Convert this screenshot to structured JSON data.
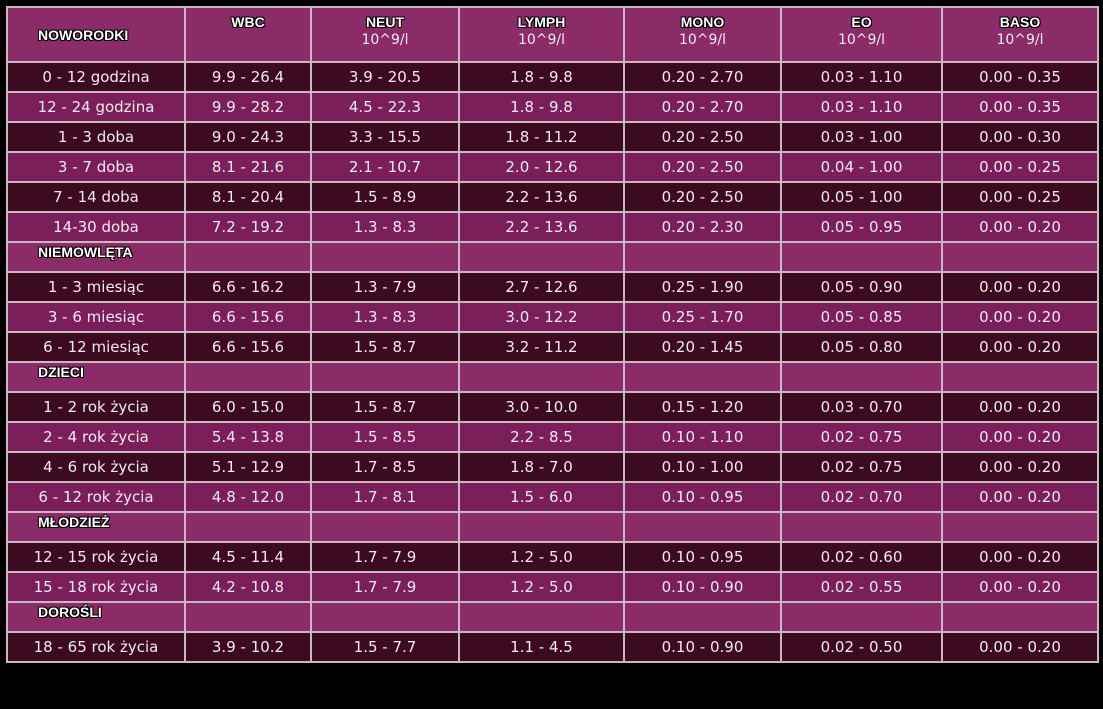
{
  "header": {
    "columns": [
      {
        "name": "WBC"
      },
      {
        "name": "NEUT",
        "unit": "10^9/l"
      },
      {
        "name": "LYMPH",
        "unit": "10^9/l"
      },
      {
        "name": "MONO",
        "unit": "10^9/l"
      },
      {
        "name": "EO",
        "unit": "10^9/l"
      },
      {
        "name": "BASO",
        "unit": "10^9/l"
      }
    ]
  },
  "sections": [
    {
      "title": "NOWORODKI",
      "rows": [
        [
          "0 - 12 godzina",
          "9.9 - 26.4",
          "3.9 - 20.5",
          "1.8 - 9.8",
          "0.20 - 2.70",
          "0.03 - 1.10",
          "0.00 - 0.35"
        ],
        [
          "12 - 24 godzina",
          "9.9 - 28.2",
          "4.5 - 22.3",
          "1.8 - 9.8",
          "0.20 - 2.70",
          "0.03 - 1.10",
          "0.00 - 0.35"
        ],
        [
          "1 - 3 doba",
          "9.0 - 24.3",
          "3.3 - 15.5",
          "1.8 - 11.2",
          "0.20 - 2.50",
          "0.03 - 1.00",
          "0.00 - 0.30"
        ],
        [
          "3 - 7 doba",
          "8.1 - 21.6",
          "2.1 - 10.7",
          "2.0 - 12.6",
          "0.20 - 2.50",
          "0.04 - 1.00",
          "0.00 - 0.25"
        ],
        [
          "7 - 14 doba",
          "8.1 - 20.4",
          "1.5 - 8.9",
          "2.2 - 13.6",
          "0.20 - 2.50",
          "0.05 - 1.00",
          "0.00 - 0.25"
        ],
        [
          "14-30 doba",
          "7.2 - 19.2",
          "1.3 - 8.3",
          "2.2 - 13.6",
          "0.20 - 2.30",
          "0.05 - 0.95",
          "0.00 - 0.20"
        ]
      ]
    },
    {
      "title": "NIEMOWLĘTA",
      "rows": [
        [
          "1 - 3 miesiąc",
          "6.6 - 16.2",
          "1.3 - 7.9",
          "2.7 - 12.6",
          "0.25 - 1.90",
          "0.05 - 0.90",
          "0.00 - 0.20"
        ],
        [
          "3 - 6 miesiąc",
          "6.6 - 15.6",
          "1.3 - 8.3",
          "3.0 - 12.2",
          "0.25 - 1.70",
          "0.05 - 0.85",
          "0.00 - 0.20"
        ],
        [
          "6 - 12 miesiąc",
          "6.6 - 15.6",
          "1.5 - 8.7",
          "3.2 - 11.2",
          "0.20 - 1.45",
          "0.05 - 0.80",
          "0.00 - 0.20"
        ]
      ]
    },
    {
      "title": "DZIECI",
      "rows": [
        [
          "1 - 2 rok życia",
          "6.0 - 15.0",
          "1.5 - 8.7",
          "3.0 - 10.0",
          "0.15 - 1.20",
          "0.03 - 0.70",
          "0.00 - 0.20"
        ],
        [
          "2 - 4 rok życia",
          "5.4 - 13.8",
          "1.5 - 8.5",
          "2.2 - 8.5",
          "0.10 - 1.10",
          "0.02 - 0.75",
          "0.00 - 0.20"
        ],
        [
          "4 - 6 rok życia",
          "5.1 - 12.9",
          "1.7 - 8.5",
          "1.8 - 7.0",
          "0.10 - 1.00",
          "0.02 - 0.75",
          "0.00 - 0.20"
        ],
        [
          "6 - 12 rok życia",
          "4.8 - 12.0",
          "1.7 - 8.1",
          "1.5 - 6.0",
          "0.10 - 0.95",
          "0.02 - 0.70",
          "0.00 - 0.20"
        ]
      ]
    },
    {
      "title": "MŁODZIEŻ",
      "rows": [
        [
          "12 - 15 rok życia",
          "4.5 - 11.4",
          "1.7 - 7.9",
          "1.2 - 5.0",
          "0.10 - 0.95",
          "0.02 - 0.60",
          "0.00 - 0.20"
        ],
        [
          "15 - 18 rok życia",
          "4.2 - 10.8",
          "1.7 - 7.9",
          "1.2 - 5.0",
          "0.10 - 0.90",
          "0.02 - 0.55",
          "0.00 - 0.20"
        ]
      ]
    },
    {
      "title": "DOROŚLI",
      "rows": [
        [
          "18 - 65 rok życia",
          "3.9 - 10.2",
          "1.5 - 7.7",
          "1.1 - 4.5",
          "0.10 - 0.90",
          "0.02 - 0.50",
          "0.00 - 0.20"
        ]
      ]
    }
  ]
}
